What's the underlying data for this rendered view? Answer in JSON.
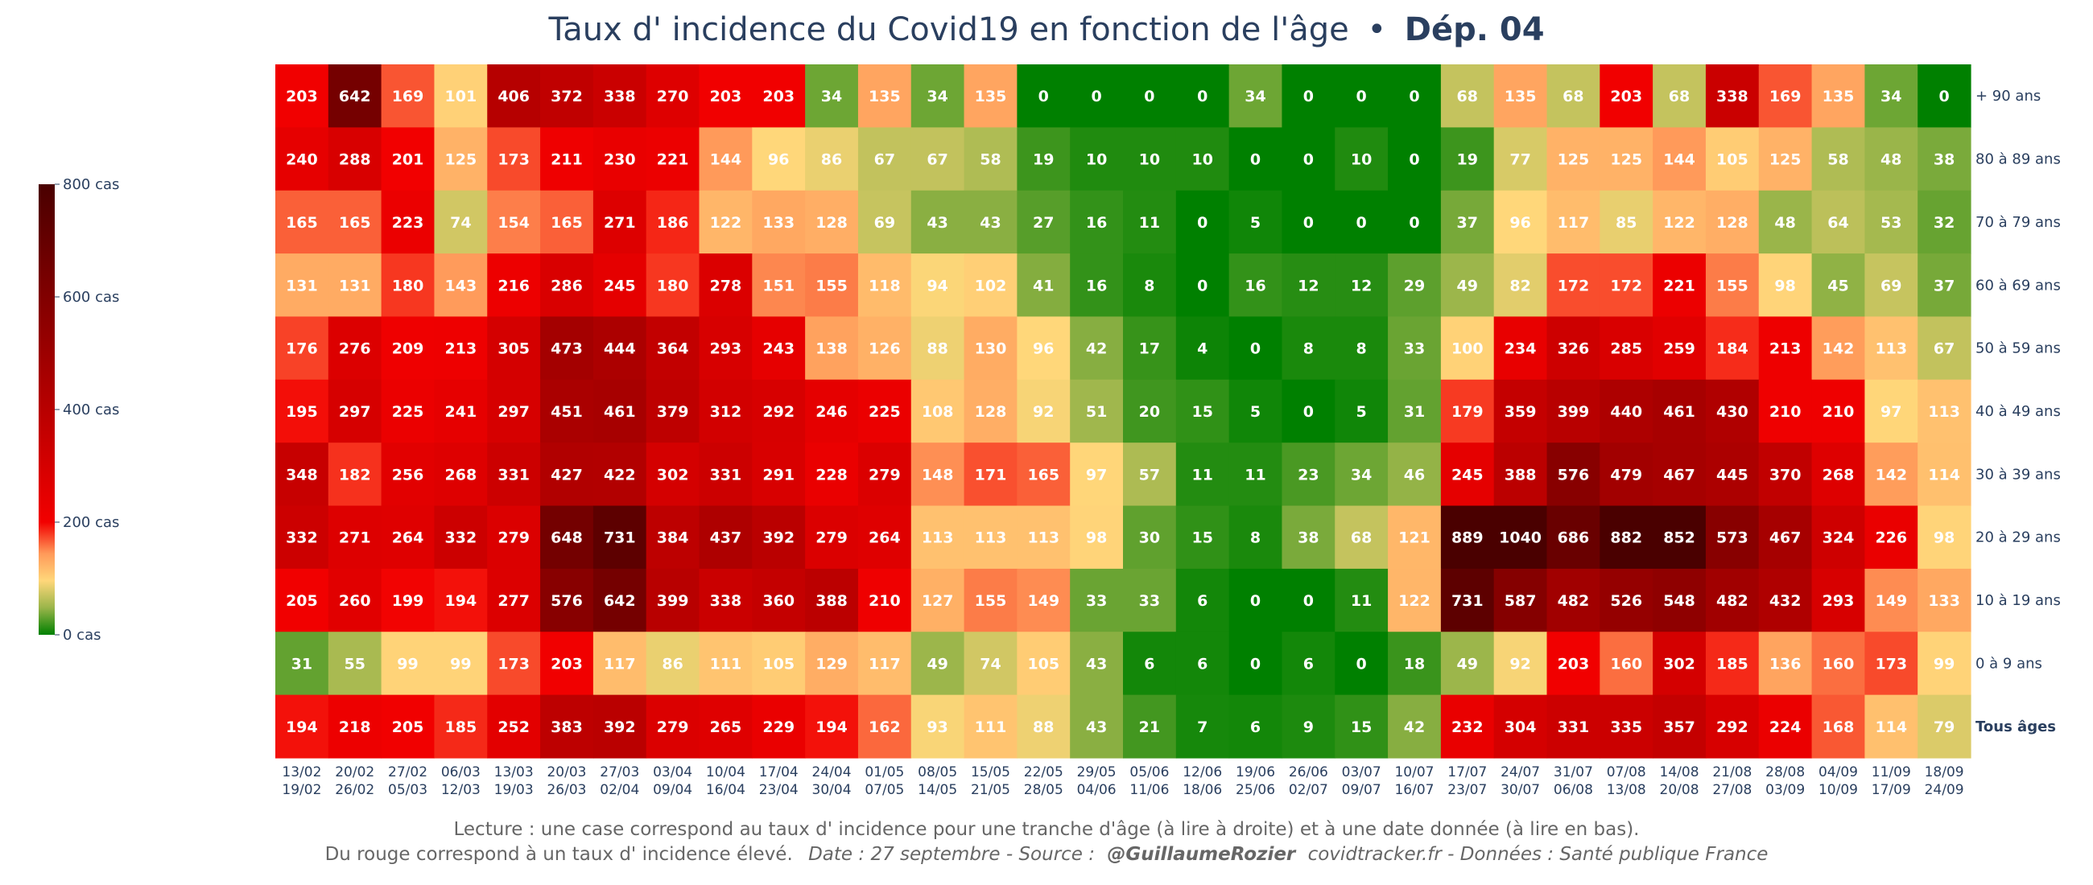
{
  "title": {
    "main": "Taux d' incidence du Covid19 en fonction de l'âge",
    "sep": "•",
    "dept": "Dép. 04"
  },
  "footer": {
    "line1": "Lecture : une case correspond au taux d' incidence pour une tranche d'âge (à lire à droite) et à une date donnée (à lire en bas).",
    "line2_part1": "Du rouge correspond à un taux d' incidence élevé.",
    "line2_date": "Date : 27 septembre - Source :",
    "line2_author": "@GuillaumeRozier",
    "line2_rest": "covidtracker.fr - Données : Santé publique France"
  },
  "colors": {
    "green": "#008000",
    "olive": "#9ab54a",
    "yellow": "#ffd77a",
    "orange": "#ff9a5a",
    "red": "#f20000",
    "darkred": "#b80000",
    "maroon": "#4a0000",
    "text": "#2a3f5f"
  },
  "chart_data": {
    "type": "heatmap",
    "title": "Taux d' incidence du Covid19 en fonction de l'âge • Dép. 04",
    "x_top": [
      "13/02",
      "20/02",
      "27/02",
      "06/03",
      "13/03",
      "20/03",
      "27/03",
      "03/04",
      "10/04",
      "17/04",
      "24/04",
      "01/05",
      "08/05",
      "15/05",
      "22/05",
      "29/05",
      "05/06",
      "12/06",
      "19/06",
      "26/06",
      "03/07",
      "10/07",
      "17/07",
      "24/07",
      "31/07",
      "07/08",
      "14/08",
      "21/08",
      "28/08",
      "04/09",
      "11/09",
      "18/09"
    ],
    "x_bottom": [
      "19/02",
      "26/02",
      "05/03",
      "12/03",
      "19/03",
      "26/03",
      "02/04",
      "09/04",
      "16/04",
      "23/04",
      "30/04",
      "07/05",
      "14/05",
      "21/05",
      "28/05",
      "04/06",
      "11/06",
      "18/06",
      "25/06",
      "02/07",
      "09/07",
      "16/07",
      "23/07",
      "30/07",
      "06/08",
      "13/08",
      "20/08",
      "27/08",
      "03/09",
      "10/09",
      "17/09",
      "24/09"
    ],
    "rows": [
      "+ 90 ans",
      "80 à 89 ans",
      "70 à 79 ans",
      "60 à 69 ans",
      "50 à 59 ans",
      "40 à 49 ans",
      "30 à 39 ans",
      "20 à 29 ans",
      "10 à 19 ans",
      "0 à 9 ans",
      "Tous âges"
    ],
    "values": [
      [
        203,
        642,
        169,
        101,
        406,
        372,
        338,
        270,
        203,
        203,
        34,
        135,
        34,
        135,
        0,
        0,
        0,
        0,
        34,
        0,
        0,
        0,
        68,
        135,
        68,
        203,
        68,
        338,
        169,
        135,
        34,
        0
      ],
      [
        240,
        288,
        201,
        125,
        173,
        211,
        230,
        221,
        144,
        96,
        86,
        67,
        67,
        58,
        19,
        10,
        10,
        10,
        0,
        0,
        10,
        0,
        19,
        77,
        125,
        125,
        144,
        105,
        125,
        58,
        48,
        38
      ],
      [
        165,
        165,
        223,
        74,
        154,
        165,
        271,
        186,
        122,
        133,
        128,
        69,
        43,
        43,
        27,
        16,
        11,
        0,
        5,
        0,
        0,
        0,
        37,
        96,
        117,
        85,
        122,
        128,
        48,
        64,
        53,
        32
      ],
      [
        131,
        131,
        180,
        143,
        216,
        286,
        245,
        180,
        278,
        151,
        155,
        118,
        94,
        102,
        41,
        16,
        8,
        0,
        16,
        12,
        12,
        29,
        49,
        82,
        172,
        172,
        221,
        155,
        98,
        45,
        69,
        37
      ],
      [
        176,
        276,
        209,
        213,
        305,
        473,
        444,
        364,
        293,
        243,
        138,
        126,
        88,
        130,
        96,
        42,
        17,
        4,
        0,
        8,
        8,
        33,
        100,
        234,
        326,
        285,
        259,
        184,
        213,
        142,
        113,
        67
      ],
      [
        195,
        297,
        225,
        241,
        297,
        451,
        461,
        379,
        312,
        292,
        246,
        225,
        108,
        128,
        92,
        51,
        20,
        15,
        5,
        0,
        5,
        31,
        179,
        359,
        399,
        440,
        461,
        430,
        210,
        210,
        97,
        113
      ],
      [
        348,
        182,
        256,
        268,
        331,
        427,
        422,
        302,
        331,
        291,
        228,
        279,
        148,
        171,
        165,
        97,
        57,
        11,
        11,
        23,
        34,
        46,
        245,
        388,
        576,
        479,
        467,
        445,
        370,
        268,
        142,
        114
      ],
      [
        332,
        271,
        264,
        332,
        279,
        648,
        731,
        384,
        437,
        392,
        279,
        264,
        113,
        113,
        113,
        98,
        30,
        15,
        8,
        38,
        68,
        121,
        889,
        1040,
        686,
        882,
        852,
        573,
        467,
        324,
        226,
        98
      ],
      [
        205,
        260,
        199,
        194,
        277,
        576,
        642,
        399,
        338,
        360,
        388,
        210,
        127,
        155,
        149,
        33,
        33,
        6,
        0,
        0,
        11,
        122,
        731,
        587,
        482,
        526,
        548,
        482,
        432,
        293,
        149,
        133
      ],
      [
        31,
        55,
        99,
        99,
        173,
        203,
        117,
        86,
        111,
        105,
        129,
        117,
        49,
        74,
        105,
        43,
        6,
        6,
        0,
        6,
        0,
        18,
        49,
        92,
        203,
        160,
        302,
        185,
        136,
        160,
        173,
        99
      ],
      [
        194,
        218,
        205,
        185,
        252,
        383,
        392,
        279,
        265,
        229,
        194,
        162,
        93,
        111,
        88,
        43,
        21,
        7,
        6,
        9,
        15,
        42,
        232,
        304,
        331,
        335,
        357,
        292,
        224,
        168,
        114,
        79
      ]
    ],
    "zmin": 0,
    "zmax": 800,
    "colorbar": {
      "ticks": [
        0,
        200,
        400,
        600,
        800
      ],
      "tick_labels": [
        "0 cas",
        "200 cas",
        "400 cas",
        "600 cas",
        "800 cas"
      ]
    }
  }
}
